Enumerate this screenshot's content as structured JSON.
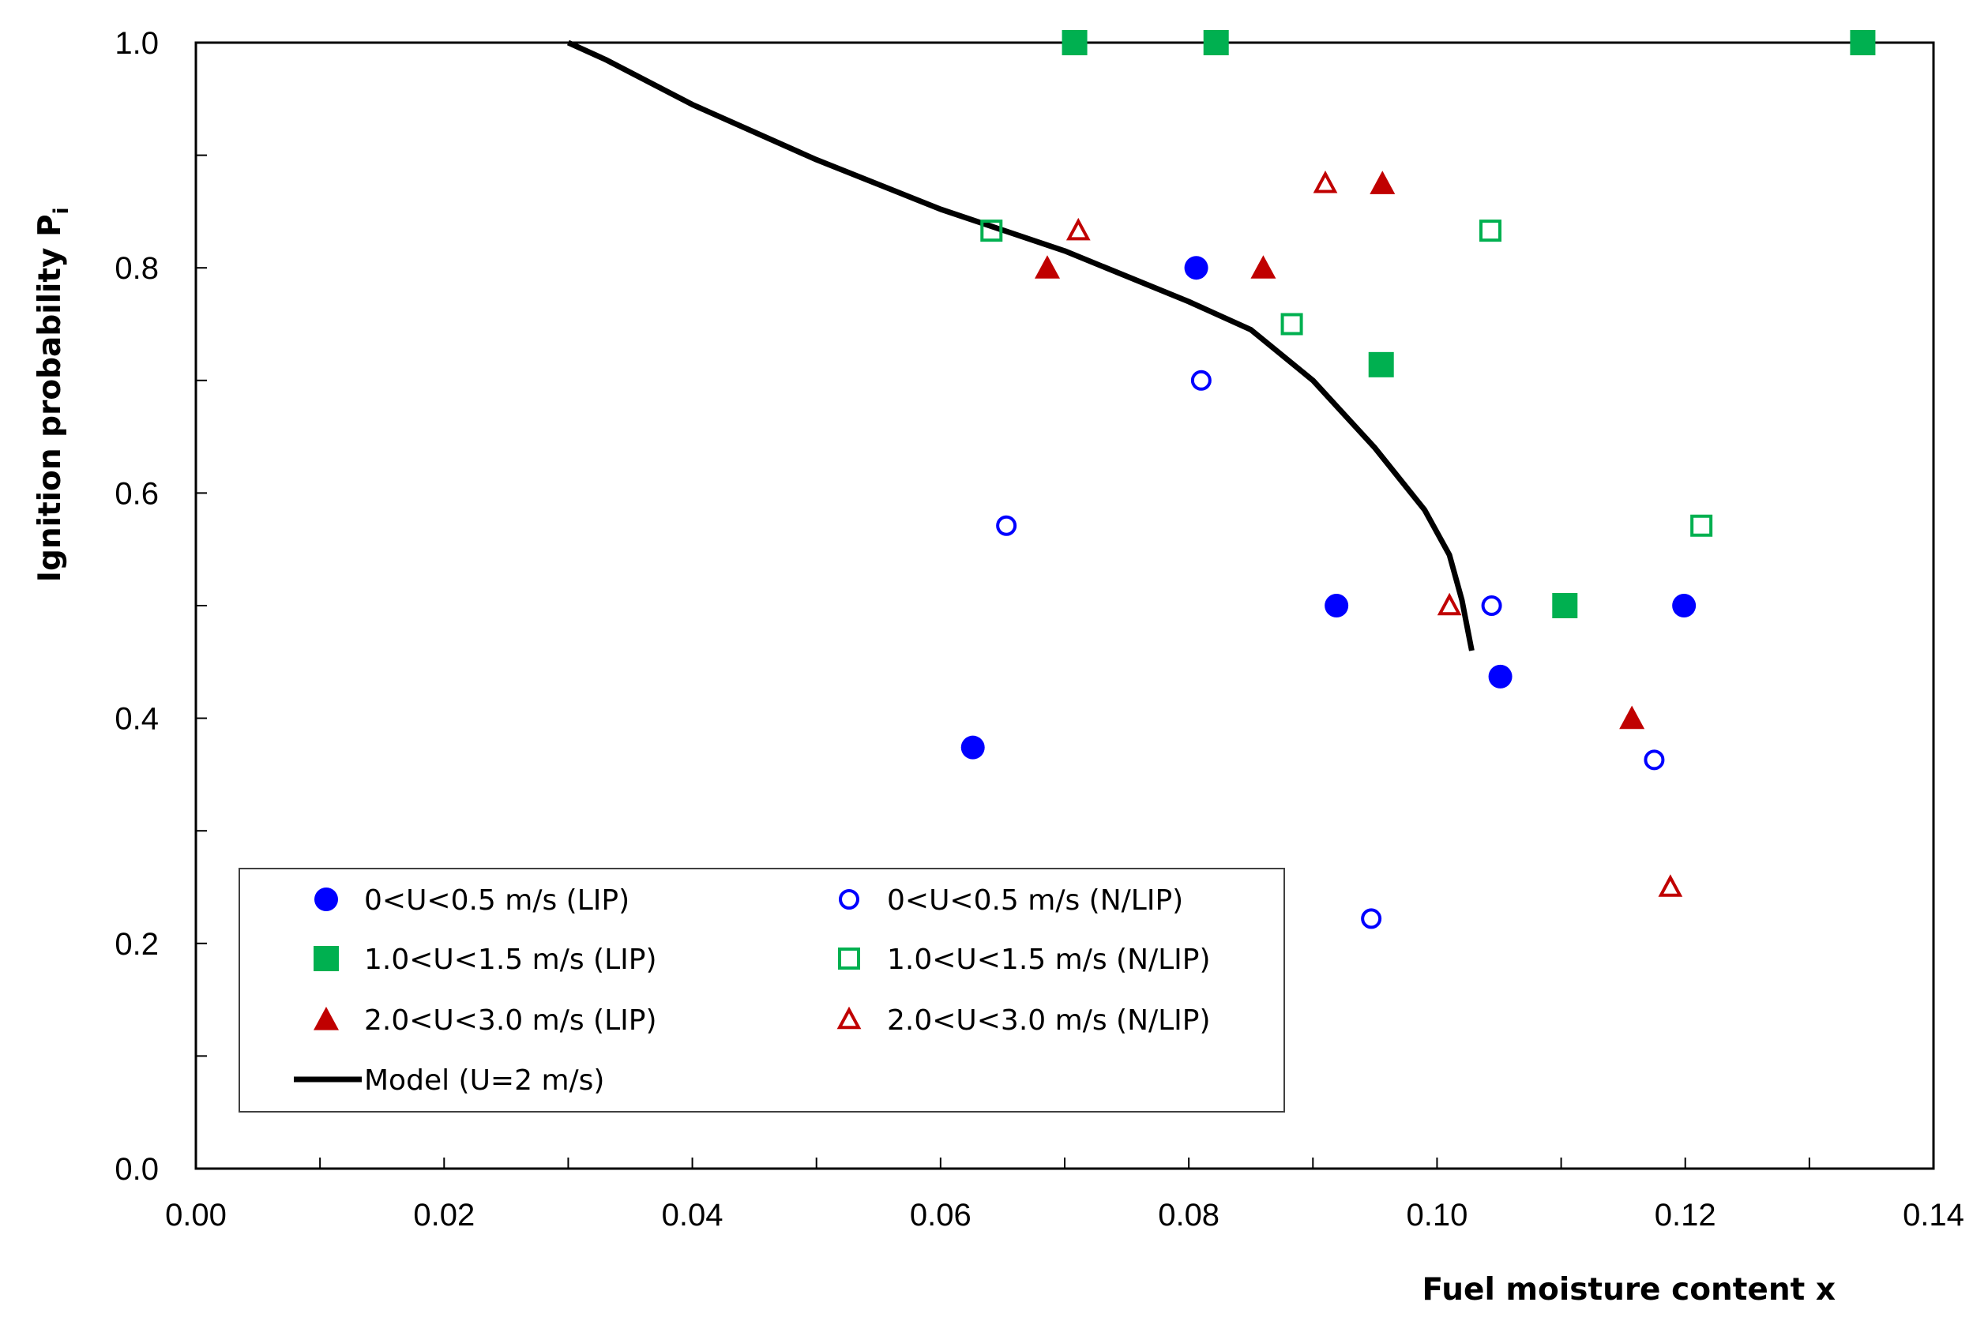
{
  "chart_data": {
    "type": "scatter",
    "title": "",
    "xlabel": "Fuel moisture content x",
    "ylabel": "Ignition probability P",
    "ylabel_subscript": "i",
    "xlim": [
      0.0,
      0.14
    ],
    "ylim": [
      0.0,
      1.0
    ],
    "x_ticks": [
      0.0,
      0.02,
      0.04,
      0.06,
      0.08,
      0.1,
      0.12,
      0.14
    ],
    "x_tick_labels": [
      "0.00",
      "0.02",
      "0.04",
      "0.06",
      "0.08",
      "0.10",
      "0.12",
      "0.14"
    ],
    "y_ticks": [
      0.0,
      0.2,
      0.4,
      0.6,
      0.8,
      1.0
    ],
    "y_tick_labels": [
      "0.0",
      "0.2",
      "0.4",
      "0.6",
      "0.8",
      "1.0"
    ],
    "grid": false,
    "legend_position": "bottom-left",
    "series": [
      {
        "name": "0<U<0.5 m/s (LIP)",
        "marker": "circle",
        "filled": true,
        "color": "#0000ff",
        "points": [
          [
            0.0626,
            0.374
          ],
          [
            0.0806,
            0.8
          ],
          [
            0.0919,
            0.5
          ],
          [
            0.1051,
            0.437
          ],
          [
            0.1199,
            0.5
          ]
        ]
      },
      {
        "name": "0<U<0.5 m/s (N/LIP)",
        "marker": "circle",
        "filled": false,
        "color": "#0000ff",
        "points": [
          [
            0.0653,
            0.571
          ],
          [
            0.081,
            0.7
          ],
          [
            0.0947,
            0.222
          ],
          [
            0.1044,
            0.5
          ],
          [
            0.1175,
            0.363
          ]
        ]
      },
      {
        "name": "1.0<U<1.5 m/s (LIP)",
        "marker": "square",
        "filled": true,
        "color": "#00b050",
        "points": [
          [
            0.0708,
            1.0
          ],
          [
            0.0822,
            1.0
          ],
          [
            0.0955,
            0.714
          ],
          [
            0.1103,
            0.5
          ],
          [
            0.1343,
            1.0
          ]
        ]
      },
      {
        "name": "1.0<U<1.5 m/s (N/LIP)",
        "marker": "square",
        "filled": false,
        "color": "#00b050",
        "points": [
          [
            0.0641,
            0.833
          ],
          [
            0.0883,
            0.75
          ],
          [
            0.1043,
            0.833
          ],
          [
            0.1213,
            0.571
          ]
        ]
      },
      {
        "name": "2.0<U<3.0 m/s (LIP)",
        "marker": "triangle",
        "filled": true,
        "color": "#c00000",
        "points": [
          [
            0.0686,
            0.8
          ],
          [
            0.086,
            0.8
          ],
          [
            0.0956,
            0.875
          ],
          [
            0.1157,
            0.4
          ]
        ]
      },
      {
        "name": "2.0<U<3.0 m/s (N/LIP)",
        "marker": "triangle",
        "filled": false,
        "color": "#c00000",
        "points": [
          [
            0.0711,
            0.833
          ],
          [
            0.091,
            0.875
          ],
          [
            0.101,
            0.5
          ],
          [
            0.1188,
            0.25
          ]
        ]
      },
      {
        "name": "Model (U=2 m/s)",
        "marker": "line",
        "color": "#000000",
        "points": [
          [
            0.03,
            1.0
          ],
          [
            0.033,
            0.985
          ],
          [
            0.04,
            0.945
          ],
          [
            0.05,
            0.896
          ],
          [
            0.06,
            0.852
          ],
          [
            0.07,
            0.815
          ],
          [
            0.08,
            0.77
          ],
          [
            0.085,
            0.745
          ],
          [
            0.09,
            0.7
          ],
          [
            0.095,
            0.64
          ],
          [
            0.099,
            0.585
          ],
          [
            0.101,
            0.545
          ],
          [
            0.102,
            0.505
          ],
          [
            0.1028,
            0.46
          ]
        ]
      }
    ],
    "legend_entries": [
      {
        "label": "0<U<0.5 m/s (LIP)",
        "series": 0
      },
      {
        "label": "0<U<0.5 m/s (N/LIP)",
        "series": 1
      },
      {
        "label": "1.0<U<1.5 m/s (LIP)",
        "series": 2
      },
      {
        "label": "1.0<U<1.5 m/s (N/LIP)",
        "series": 3
      },
      {
        "label": "2.0<U<3.0 m/s (LIP)",
        "series": 4
      },
      {
        "label": "2.0<U<3.0 m/s (N/LIP)",
        "series": 5
      },
      {
        "label": "Model (U=2 m/s)",
        "series": 6
      }
    ]
  }
}
